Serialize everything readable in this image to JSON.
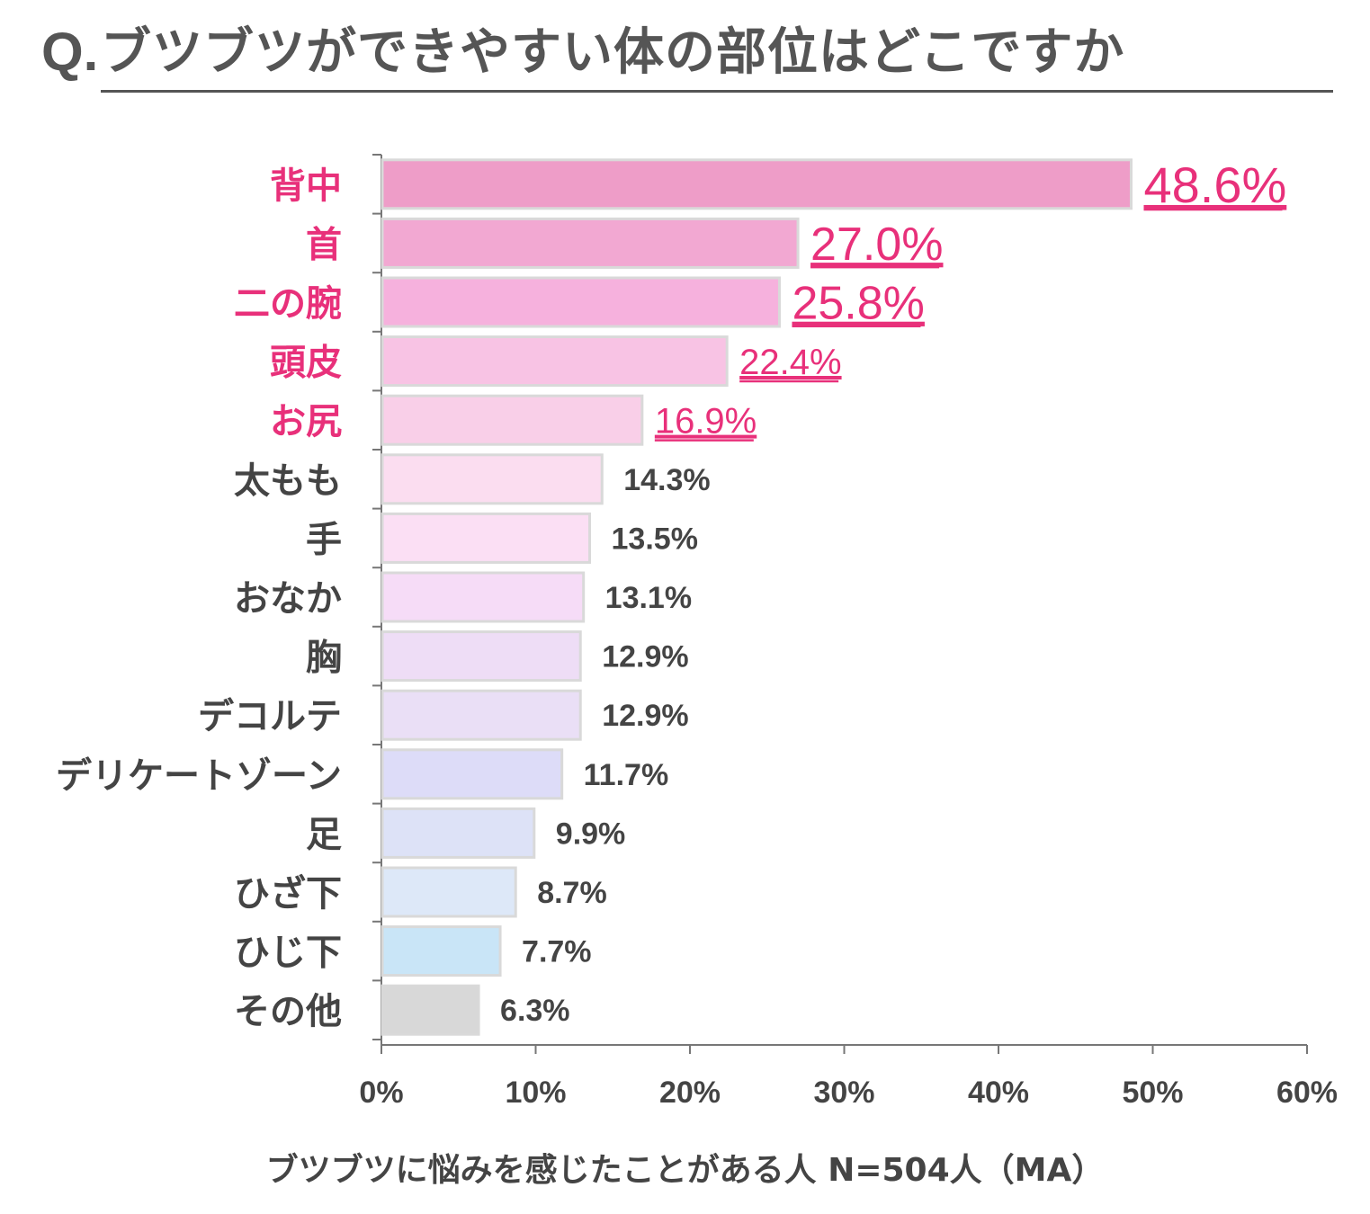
{
  "title": {
    "prefix": "Q.",
    "text": "ブツブツができやすい体の部位はどこですか"
  },
  "caption": "ブツブツに悩みを感じたことがある人 N=504人（MA）",
  "colors": {
    "highlight_text": "#E8307A",
    "normal_text": "#444444",
    "axis": "#777777"
  },
  "chart_data": {
    "type": "bar",
    "orientation": "horizontal",
    "categories": [
      "背中",
      "首",
      "二の腕",
      "頭皮",
      "お尻",
      "太もも",
      "手",
      "おなか",
      "胸",
      "デコルテ",
      "デリケートゾーン",
      "足",
      "ひざ下",
      "ひじ下",
      "その他"
    ],
    "values": [
      48.6,
      27.0,
      25.8,
      22.4,
      16.9,
      14.3,
      13.5,
      13.1,
      12.9,
      12.9,
      11.7,
      9.9,
      8.7,
      7.7,
      6.3
    ],
    "value_labels": [
      "48.6%",
      "27.0%",
      "25.8%",
      "22.4%",
      "16.9%",
      "14.3%",
      "13.5%",
      "13.1%",
      "12.9%",
      "12.9%",
      "11.7%",
      "9.9%",
      "8.7%",
      "7.7%",
      "6.3%"
    ],
    "highlighted": [
      true,
      true,
      true,
      true,
      true,
      false,
      false,
      false,
      false,
      false,
      false,
      false,
      false,
      false,
      false
    ],
    "bar_colors": [
      "#EE9DC8",
      "#F2A8D2",
      "#F6B1DD",
      "#F8C3E4",
      "#F9CFE8",
      "#FBDDF0",
      "#FBDFF4",
      "#F6DCF7",
      "#EEDDF6",
      "#EADFF6",
      "#DDDCF8",
      "#DDE2F7",
      "#DDE8F8",
      "#C9E5F7",
      "#D8D8D8"
    ],
    "xticks": [
      "0%",
      "10%",
      "20%",
      "30%",
      "40%",
      "50%",
      "60%"
    ],
    "xlim": [
      0,
      60
    ],
    "grid": false
  }
}
